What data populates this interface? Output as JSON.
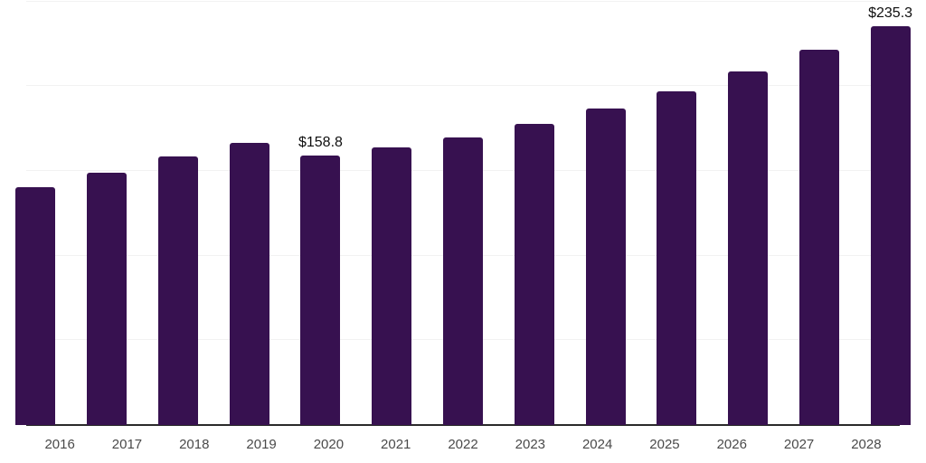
{
  "chart_data": {
    "type": "bar",
    "title": "",
    "categories": [
      "2016",
      "2017",
      "2018",
      "2019",
      "2020",
      "2021",
      "2022",
      "2023",
      "2024",
      "2025",
      "2026",
      "2027",
      "2028"
    ],
    "values": [
      140.4,
      148.9,
      158.3,
      166.5,
      158.8,
      163.6,
      169.7,
      177.5,
      186.8,
      197.0,
      208.4,
      221.5,
      235.3
    ],
    "data_labels": [
      "",
      "",
      "",
      "",
      "$158.8",
      "",
      "",
      "",
      "",
      "",
      "",
      "",
      "$235.3"
    ],
    "xlabel": "",
    "ylabel": "",
    "ylim": [
      0,
      250
    ],
    "gridline_step": 50,
    "grid": true,
    "legend": "none",
    "y_tick_labels_visible": false
  },
  "colors": {
    "bar": "#371150",
    "axis_line": "#2a2a2a",
    "gridline": "#f2f2f2",
    "x_label_text": "#4a4a4a",
    "value_label_text": "#0f0f0f",
    "background": "#ffffff"
  }
}
